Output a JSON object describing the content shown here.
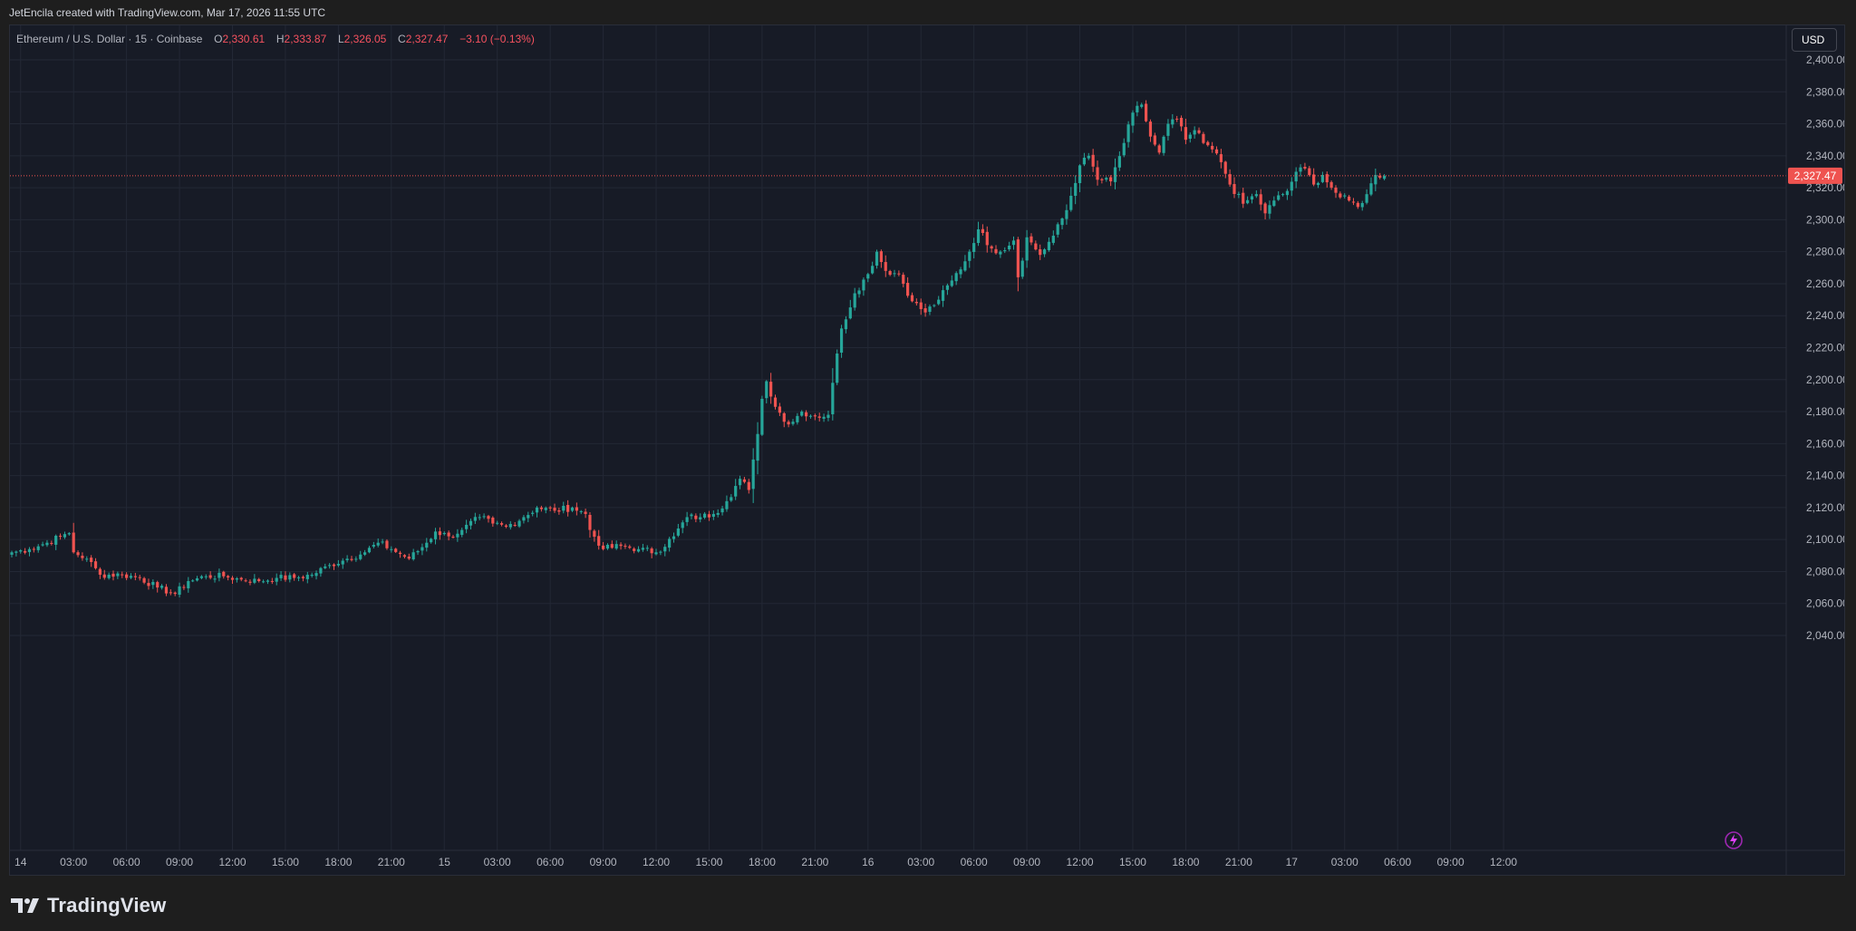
{
  "header": {
    "attribution": "JetEncila created with TradingView.com, Mar 17, 2026 11:55 UTC"
  },
  "legend": {
    "symbol": "Ethereum / U.S. Dollar · 15 · Coinbase",
    "open_label": "O",
    "open": "2,330.61",
    "high_label": "H",
    "high": "2,333.87",
    "low_label": "L",
    "low": "2,326.05",
    "close_label": "C",
    "close": "2,327.47",
    "change": "−3.10 (−0.13%)"
  },
  "currency_button": "USD",
  "footer": {
    "brand": "TradingView"
  },
  "colors": {
    "up": "#26a69a",
    "down": "#ef5350",
    "background": "#171b26",
    "grid": "#232835",
    "price_line": "#ef5350"
  },
  "chart_data": {
    "type": "candlestick",
    "title": "Ethereum / U.S. Dollar · 15 · Coinbase",
    "interval": "15",
    "ylim": [
      2030,
      2410
    ],
    "y_ticks": [
      "2,040.00",
      "2,060.00",
      "2,080.00",
      "2,100.00",
      "2,120.00",
      "2,140.00",
      "2,160.00",
      "2,180.00",
      "2,200.00",
      "2,220.00",
      "2,240.00",
      "2,260.00",
      "2,280.00",
      "2,300.00",
      "2,320.00",
      "2,340.00",
      "2,360.00",
      "2,380.00",
      "2,400.00"
    ],
    "x_ticks": [
      "14",
      "03:00",
      "06:00",
      "09:00",
      "12:00",
      "15:00",
      "18:00",
      "21:00",
      "15",
      "03:00",
      "06:00",
      "09:00",
      "12:00",
      "15:00",
      "18:00",
      "21:00",
      "16",
      "03:00",
      "06:00",
      "09:00",
      "12:00",
      "15:00",
      "18:00",
      "21:00",
      "17",
      "03:00",
      "06:00",
      "09:00",
      "12:00"
    ],
    "tick_spacing_hours": 3,
    "last_price": 2327.47,
    "last_price_label": "2,327.47",
    "price_anchors": [
      [
        0,
        2092
      ],
      [
        4,
        2094
      ],
      [
        8,
        2098
      ],
      [
        11,
        2102
      ],
      [
        13,
        2104
      ],
      [
        14,
        2092
      ],
      [
        17,
        2088
      ],
      [
        20,
        2078
      ],
      [
        25,
        2078
      ],
      [
        29,
        2076
      ],
      [
        33,
        2070
      ],
      [
        37,
        2066
      ],
      [
        40,
        2074
      ],
      [
        44,
        2077
      ],
      [
        48,
        2077
      ],
      [
        52,
        2075
      ],
      [
        56,
        2074
      ],
      [
        60,
        2076
      ],
      [
        64,
        2076
      ],
      [
        68,
        2078
      ],
      [
        72,
        2084
      ],
      [
        76,
        2088
      ],
      [
        80,
        2092
      ],
      [
        83,
        2098
      ],
      [
        86,
        2094
      ],
      [
        90,
        2088
      ],
      [
        94,
        2098
      ],
      [
        96,
        2105
      ],
      [
        99,
        2102
      ],
      [
        102,
        2106
      ],
      [
        106,
        2114
      ],
      [
        109,
        2110
      ],
      [
        112,
        2108
      ],
      [
        116,
        2114
      ],
      [
        119,
        2120
      ],
      [
        123,
        2118
      ],
      [
        127,
        2120
      ],
      [
        130,
        2116
      ],
      [
        131,
        2106
      ],
      [
        134,
        2094
      ],
      [
        138,
        2096
      ],
      [
        142,
        2094
      ],
      [
        146,
        2092
      ],
      [
        150,
        2102
      ],
      [
        153,
        2114
      ],
      [
        156,
        2114
      ],
      [
        159,
        2116
      ],
      [
        162,
        2124
      ],
      [
        165,
        2138
      ],
      [
        167,
        2131
      ],
      [
        169,
        2166
      ],
      [
        170,
        2188
      ],
      [
        171,
        2199
      ],
      [
        173,
        2183
      ],
      [
        176,
        2172
      ],
      [
        179,
        2180
      ],
      [
        182,
        2177
      ],
      [
        185,
        2178
      ],
      [
        186,
        2198
      ],
      [
        188,
        2232
      ],
      [
        191,
        2254
      ],
      [
        194,
        2266
      ],
      [
        196,
        2280
      ],
      [
        198,
        2268
      ],
      [
        201,
        2266
      ],
      [
        204,
        2249
      ],
      [
        207,
        2242
      ],
      [
        210,
        2250
      ],
      [
        213,
        2262
      ],
      [
        216,
        2274
      ],
      [
        219,
        2294
      ],
      [
        222,
        2282
      ],
      [
        224,
        2280
      ],
      [
        227,
        2287
      ],
      [
        228,
        2264
      ],
      [
        230,
        2289
      ],
      [
        233,
        2278
      ],
      [
        236,
        2290
      ],
      [
        239,
        2306
      ],
      [
        242,
        2334
      ],
      [
        244,
        2340
      ],
      [
        246,
        2325
      ],
      [
        249,
        2324
      ],
      [
        252,
        2348
      ],
      [
        254,
        2367
      ],
      [
        256,
        2372
      ],
      [
        258,
        2352
      ],
      [
        260,
        2342
      ],
      [
        262,
        2360
      ],
      [
        264,
        2363
      ],
      [
        266,
        2350
      ],
      [
        268,
        2356
      ],
      [
        270,
        2348
      ],
      [
        272,
        2344
      ],
      [
        274,
        2336
      ],
      [
        276,
        2322
      ],
      [
        279,
        2310
      ],
      [
        282,
        2316
      ],
      [
        284,
        2304
      ],
      [
        286,
        2312
      ],
      [
        289,
        2318
      ],
      [
        291,
        2330
      ],
      [
        293,
        2332
      ],
      [
        295,
        2322
      ],
      [
        297,
        2328
      ],
      [
        299,
        2320
      ],
      [
        301,
        2314
      ],
      [
        303,
        2312
      ],
      [
        305,
        2308
      ],
      [
        307,
        2316
      ],
      [
        309,
        2328
      ],
      [
        311,
        2327.5
      ]
    ]
  }
}
